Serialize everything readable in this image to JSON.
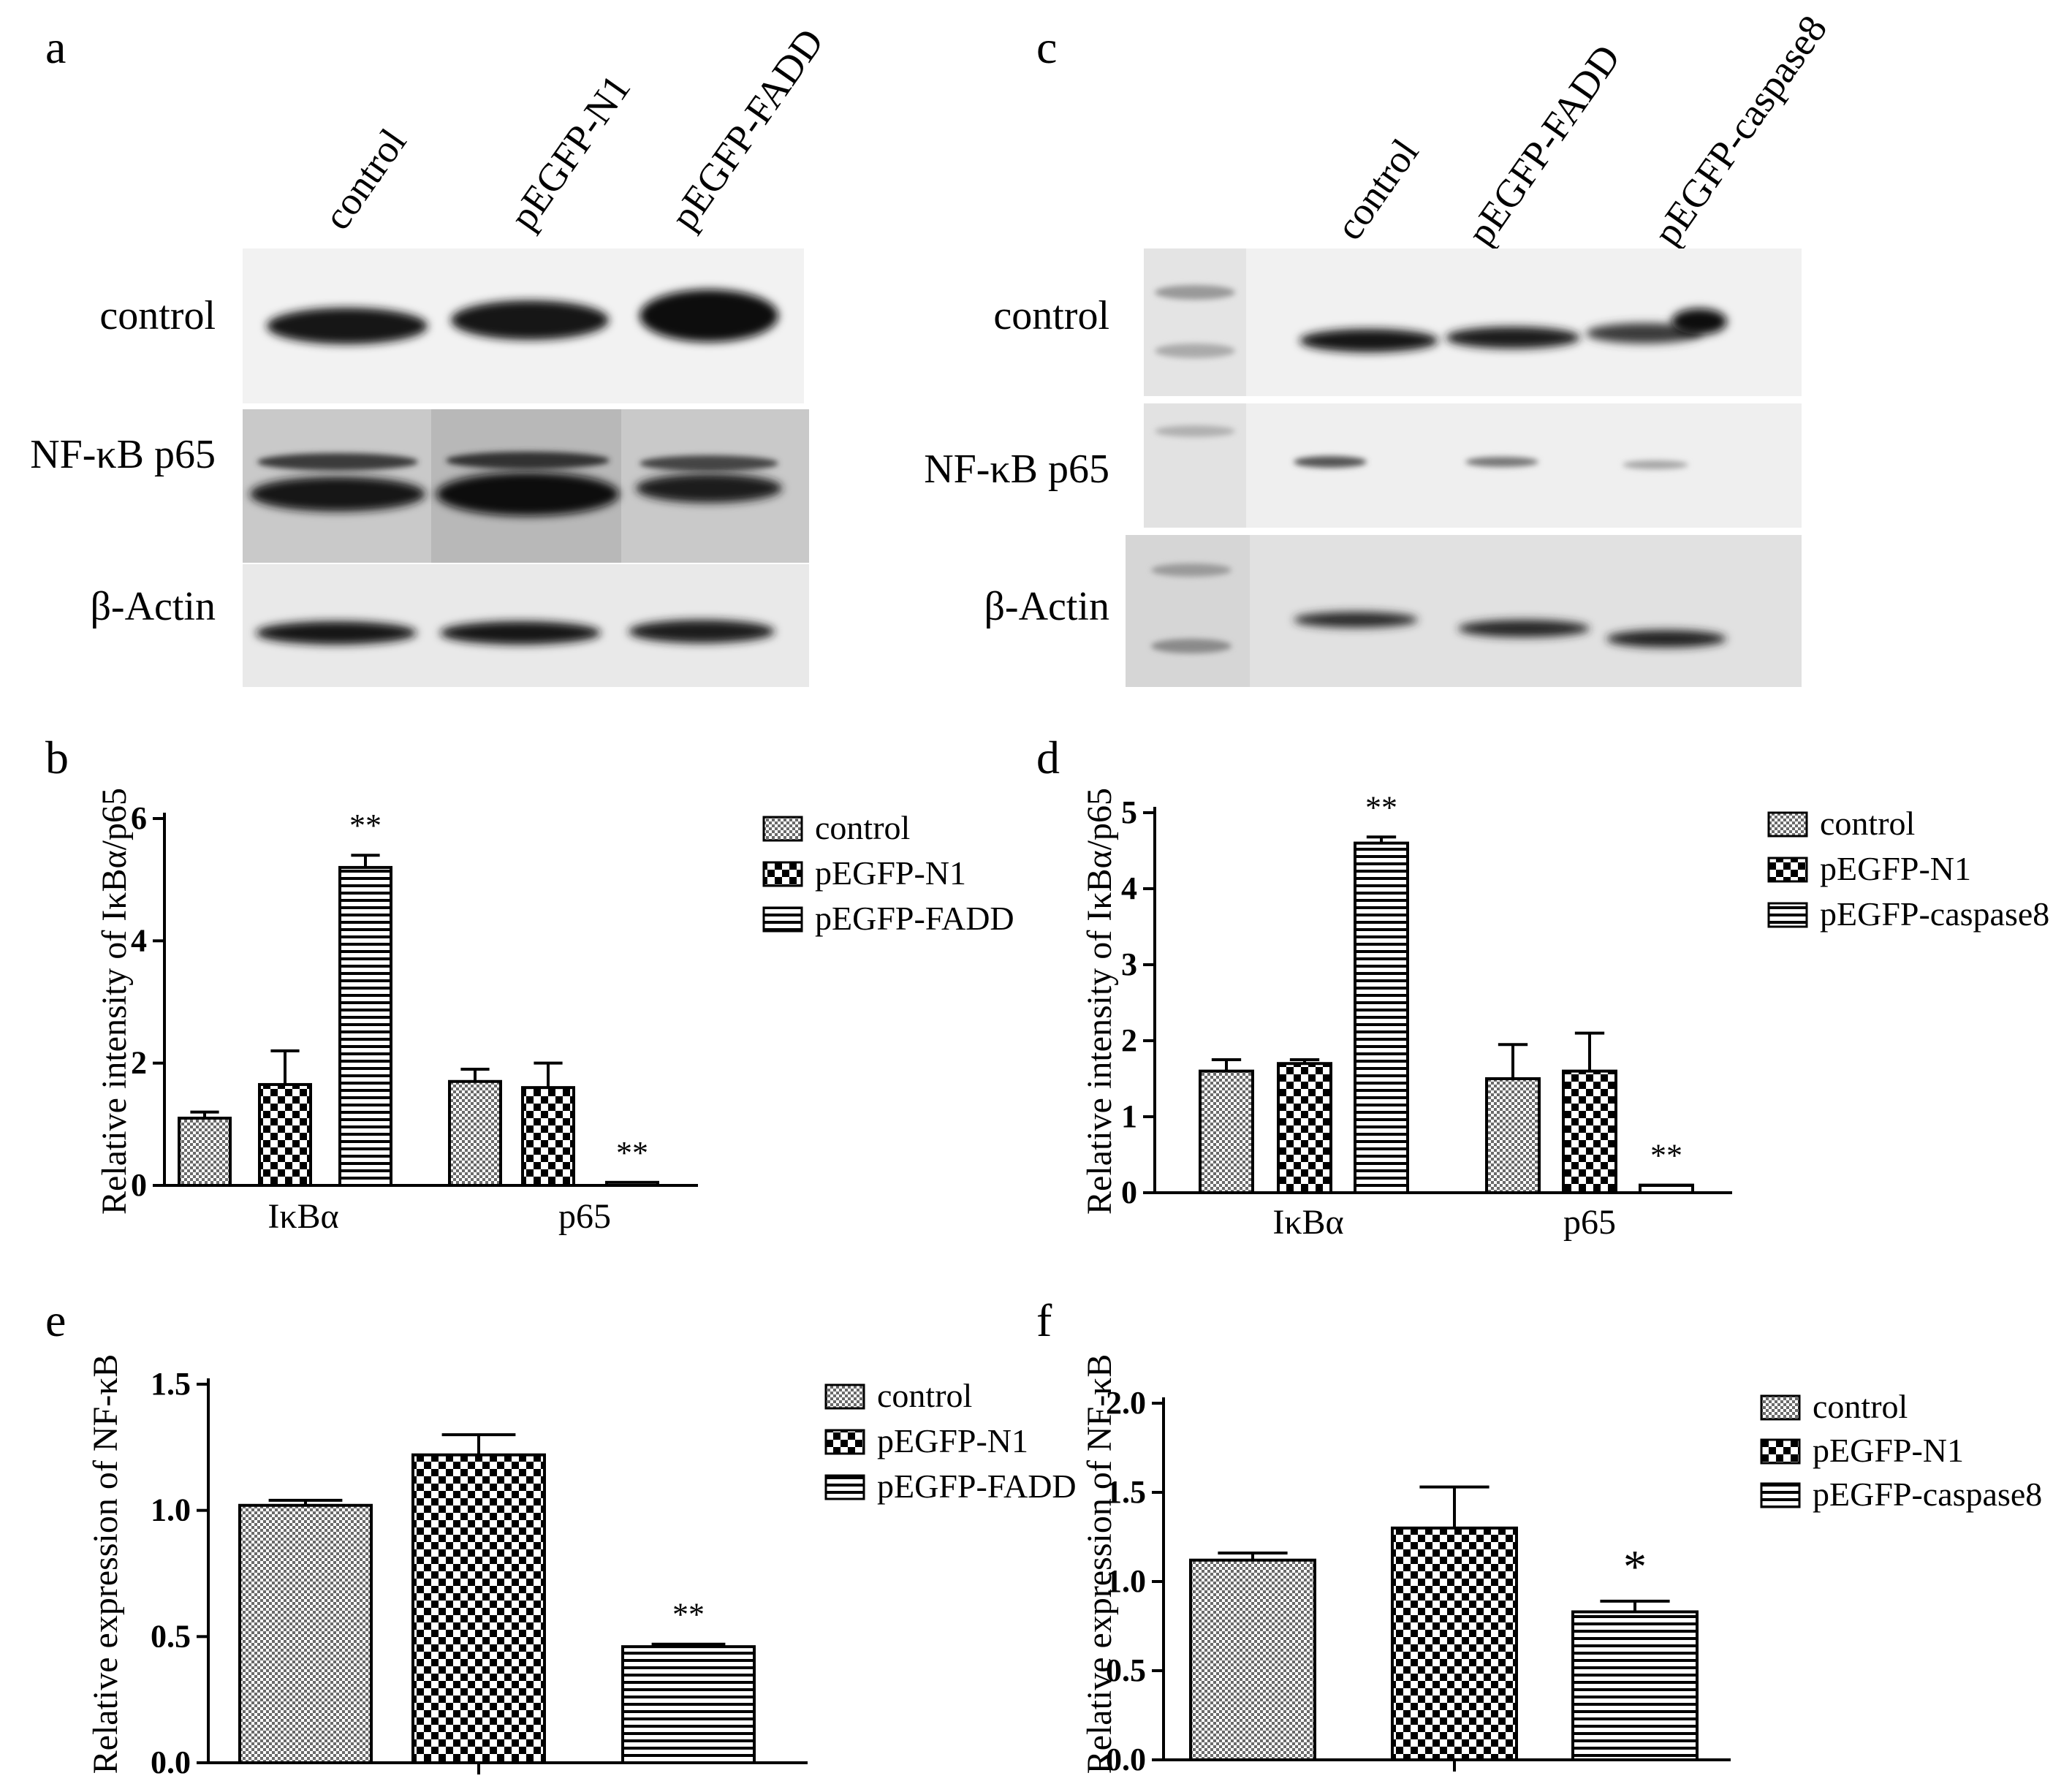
{
  "panels": {
    "a": {
      "letter": "a",
      "lanes": [
        "control",
        "pEGFP-N1",
        "pEGFP-FADD"
      ],
      "rows": [
        "control",
        "NF-κB p65",
        "β-Actin"
      ]
    },
    "c": {
      "letter": "c",
      "lanes": [
        "control",
        "pEGFP-FADD",
        "pEGFP-caspase8"
      ],
      "rows": [
        "control",
        "NF-κB p65",
        "β-Actin"
      ]
    }
  },
  "chart_data": [
    {
      "panel": "b",
      "type": "bar",
      "categories": [
        "IκBα",
        "p65"
      ],
      "ylabel": "Relative intensity of IκBα/p65",
      "ylim": [
        0,
        6
      ],
      "yticks": [
        "0",
        "2",
        "4",
        "6"
      ],
      "series": [
        {
          "name": "control",
          "values": [
            1.1,
            1.7
          ],
          "errors": [
            0.1,
            0.2
          ],
          "pattern": "pat-fine",
          "sig": [
            "",
            ""
          ]
        },
        {
          "name": "pEGFP-N1",
          "values": [
            1.65,
            1.6
          ],
          "errors": [
            0.55,
            0.4
          ],
          "pattern": "pat-check",
          "sig": [
            "",
            ""
          ]
        },
        {
          "name": "pEGFP-FADD",
          "values": [
            5.2,
            0.05
          ],
          "errors": [
            0.2,
            0.0
          ],
          "pattern": "pat-hline",
          "sig": [
            "**",
            "**"
          ]
        }
      ]
    },
    {
      "panel": "d",
      "type": "bar",
      "categories": [
        "IκBα",
        "p65"
      ],
      "ylabel": "Relative intensity of IκBα/p65",
      "ylim": [
        0,
        5
      ],
      "yticks": [
        "0",
        "1",
        "2",
        "3",
        "4",
        "5"
      ],
      "series": [
        {
          "name": "control",
          "values": [
            1.6,
            1.5
          ],
          "errors": [
            0.15,
            0.45
          ],
          "pattern": "pat-fine",
          "sig": [
            "",
            ""
          ]
        },
        {
          "name": "pEGFP-N1",
          "values": [
            1.7,
            1.6
          ],
          "errors": [
            0.05,
            0.5
          ],
          "pattern": "pat-check",
          "sig": [
            "",
            ""
          ]
        },
        {
          "name": "pEGFP-caspase8",
          "values": [
            4.6,
            0.1
          ],
          "errors": [
            0.08,
            0.0
          ],
          "pattern": "pat-hline",
          "sig": [
            "**",
            "**"
          ]
        }
      ]
    },
    {
      "panel": "e",
      "type": "bar",
      "categories": [
        "control",
        "pEGFP-N1",
        "pEGFP-FADD"
      ],
      "ylabel": "Relative expression of NF-κB",
      "ylim": [
        0,
        1.5
      ],
      "yticks": [
        "0.0",
        "0.5",
        "1.0",
        "1.5"
      ],
      "values": [
        1.02,
        1.22,
        0.46
      ],
      "errors": [
        0.02,
        0.08,
        0.01
      ],
      "sig": [
        "",
        "",
        "**"
      ],
      "patterns": [
        "pat-fine",
        "pat-check",
        "pat-hline"
      ]
    },
    {
      "panel": "f",
      "type": "bar",
      "categories": [
        "control",
        "pEGFP-N1",
        "pEGFP-caspase8"
      ],
      "ylabel": "Relative expression of NF-κB",
      "ylim": [
        0,
        2.0
      ],
      "yticks": [
        "0.0",
        "0.5",
        "1.0",
        "1.5",
        "2.0"
      ],
      "values": [
        1.12,
        1.3,
        0.83
      ],
      "errors": [
        0.04,
        0.23,
        0.06
      ],
      "sig": [
        "",
        "",
        "*"
      ],
      "patterns": [
        "pat-fine",
        "pat-check",
        "pat-hline"
      ]
    }
  ]
}
